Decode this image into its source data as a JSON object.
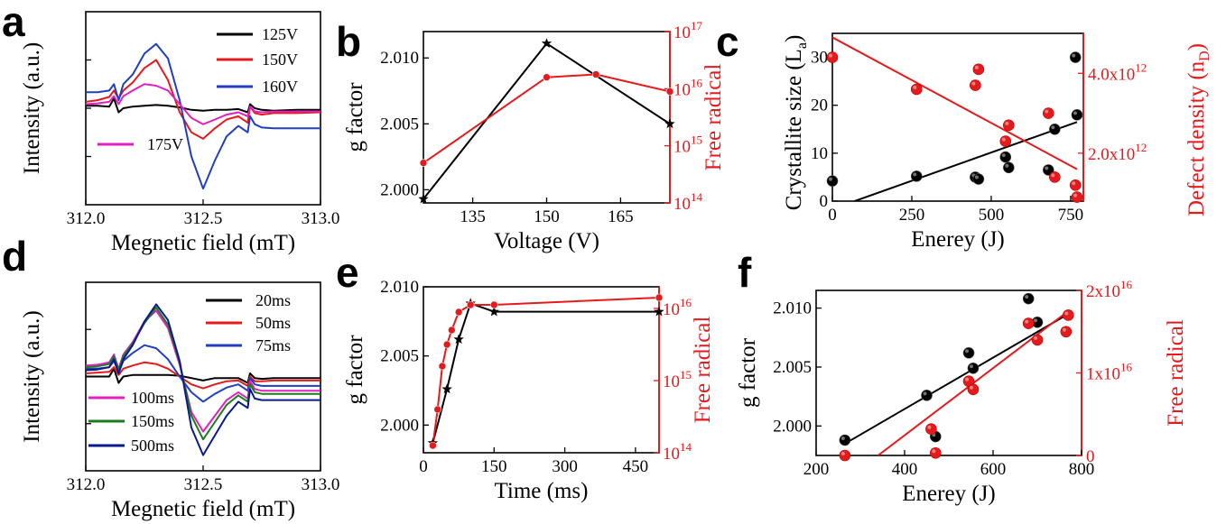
{
  "chart_data": [
    {
      "id": "a",
      "panel_label": "a",
      "type": "line",
      "xlabel": "Megnetic field (mT)",
      "ylabel": "Intensity (a.u.)",
      "xlim": [
        312.0,
        313.0
      ],
      "ylim": [
        -1.2,
        1.2
      ],
      "xticks": [
        312.0,
        312.5,
        313.0
      ],
      "xtick_labels": [
        "312.0",
        "312.5",
        "313.0"
      ],
      "y_tick_labels_shown": false,
      "series": [
        {
          "name": "125V",
          "color": "#000000",
          "x": [
            312.0,
            312.05,
            312.1,
            312.12,
            312.14,
            312.16,
            312.2,
            312.25,
            312.3,
            312.35,
            312.4,
            312.45,
            312.5,
            312.55,
            312.6,
            312.65,
            312.69,
            312.7,
            312.72,
            312.75,
            312.8,
            312.9,
            313.0
          ],
          "y": [
            0.03,
            0.03,
            0.02,
            0.12,
            -0.05,
            0.0,
            0.02,
            0.03,
            0.04,
            0.03,
            0.01,
            -0.02,
            -0.03,
            -0.02,
            -0.02,
            -0.01,
            -0.05,
            0.05,
            0.0,
            -0.02,
            -0.03,
            -0.02,
            -0.02
          ]
        },
        {
          "name": "150V",
          "color": "#e41a1c",
          "x": [
            312.0,
            312.05,
            312.1,
            312.12,
            312.14,
            312.16,
            312.2,
            312.25,
            312.3,
            312.35,
            312.4,
            312.45,
            312.5,
            312.55,
            312.6,
            312.65,
            312.69,
            312.7,
            312.72,
            312.75,
            312.8,
            312.9,
            313.0
          ],
          "y": [
            0.08,
            0.1,
            0.14,
            0.22,
            0.12,
            0.22,
            0.32,
            0.5,
            0.6,
            0.35,
            -0.05,
            -0.3,
            -0.38,
            -0.25,
            -0.14,
            -0.1,
            -0.18,
            0.02,
            -0.06,
            -0.08,
            -0.06,
            -0.06,
            -0.05
          ]
        },
        {
          "name": "160V",
          "color": "#1f3fbf",
          "x": [
            312.0,
            312.05,
            312.1,
            312.12,
            312.14,
            312.16,
            312.2,
            312.25,
            312.3,
            312.35,
            312.4,
            312.45,
            312.5,
            312.55,
            312.6,
            312.65,
            312.69,
            312.7,
            312.72,
            312.75,
            312.8,
            312.9,
            313.0
          ],
          "y": [
            0.2,
            0.2,
            0.22,
            0.3,
            0.1,
            0.3,
            0.42,
            0.68,
            0.8,
            0.62,
            0.1,
            -0.6,
            -1.0,
            -0.65,
            -0.35,
            -0.22,
            -0.3,
            -0.1,
            -0.2,
            -0.24,
            -0.25,
            -0.25,
            -0.25
          ]
        },
        {
          "name": "175V",
          "color": "#e020c0",
          "x": [
            312.0,
            312.05,
            312.1,
            312.12,
            312.14,
            312.16,
            312.2,
            312.25,
            312.3,
            312.35,
            312.4,
            312.45,
            312.5,
            312.55,
            312.6,
            312.65,
            312.69,
            312.7,
            312.72,
            312.75,
            312.8,
            312.9,
            313.0
          ],
          "y": [
            0.05,
            0.06,
            0.08,
            0.15,
            0.05,
            0.15,
            0.22,
            0.3,
            0.28,
            0.22,
            0.05,
            -0.12,
            -0.2,
            -0.14,
            -0.08,
            -0.05,
            -0.1,
            0.02,
            -0.04,
            -0.05,
            -0.04,
            -0.04,
            -0.04
          ]
        }
      ]
    },
    {
      "id": "b",
      "panel_label": "b",
      "type": "line",
      "xlabel": "Voltage (V)",
      "ylabel": "g factor",
      "ylabel_right": "Free radical",
      "xlim": [
        125,
        175
      ],
      "xticks": [
        135,
        150,
        165
      ],
      "ylim": [
        1.999,
        2.012
      ],
      "yticks": [
        2.0,
        2.005,
        2.01
      ],
      "ytick_labels": [
        "2.000",
        "2.005",
        "2.010"
      ],
      "y2_log_range": [
        14,
        17
      ],
      "y2_exponents": [
        "14",
        "15",
        "16",
        "17"
      ],
      "series": [
        {
          "name": "g factor",
          "axis": "left",
          "color": "#000000",
          "marker": "star",
          "x": [
            125,
            150,
            175
          ],
          "y": [
            1.9993,
            2.0111,
            2.005
          ]
        },
        {
          "name": "Free radical",
          "axis": "right",
          "color": "#e41a1c",
          "marker": "circle",
          "x": [
            125,
            150,
            160,
            175
          ],
          "y_log10": [
            14.7,
            16.2,
            16.25,
            15.95
          ]
        }
      ]
    },
    {
      "id": "c",
      "panel_label": "c",
      "type": "scatter",
      "xlabel": "Enerey (J)",
      "ylabel": "Crystallite size (L",
      "ylabel_sub": "a",
      "ylabel_right": "Defect density (n",
      "ylabel_right_sub": "D",
      "xlim": [
        0,
        790
      ],
      "xticks": [
        0,
        250,
        500,
        750
      ],
      "ylim": [
        0,
        35
      ],
      "yticks": [
        0,
        10,
        20,
        30
      ],
      "y2lim": [
        800000000000,
        5000000000000
      ],
      "y2ticks": [
        2000000000000,
        4000000000000
      ],
      "y2tick_mantissa": [
        "2.0x10",
        "4.0x10"
      ],
      "y2tick_exponent": "12",
      "series": [
        {
          "name": "Crystallite size",
          "axis": "left",
          "color": "#000000",
          "x": [
            0,
            265,
            450,
            460,
            545,
            555,
            680,
            700,
            765,
            770
          ],
          "y": [
            4.2,
            5.2,
            5.0,
            4.6,
            9.2,
            7.0,
            6.5,
            15.0,
            30.0,
            18.0
          ],
          "fit": [
            [
              70,
              0
            ],
            [
              770,
              16.5
            ]
          ]
        },
        {
          "name": "Defect density",
          "axis": "right",
          "color": "#e41a1c",
          "x": [
            0,
            265,
            450,
            460,
            545,
            555,
            680,
            700,
            765,
            770
          ],
          "y": [
            4400000000000,
            3600000000000,
            3700000000000,
            4100000000000,
            2300000000000,
            2700000000000,
            3000000000000,
            1400000000000,
            1200000000000,
            900000000000
          ],
          "fit": [
            [
              0,
              4900000000000
            ],
            [
              770,
              1600000000000
            ]
          ]
        }
      ]
    },
    {
      "id": "d",
      "panel_label": "d",
      "type": "line",
      "xlabel": "Megnetic field (mT)",
      "ylabel": "Intensity (a.u.)",
      "xlim": [
        312.0,
        313.0
      ],
      "ylim": [
        -1.2,
        1.2
      ],
      "xticks": [
        312.0,
        312.5,
        313.0
      ],
      "xtick_labels": [
        "312.0",
        "312.5",
        "313.0"
      ],
      "y_tick_labels_shown": false,
      "series": [
        {
          "name": "20ms",
          "color": "#000000",
          "x": [
            312.0,
            312.05,
            312.1,
            312.12,
            312.14,
            312.16,
            312.2,
            312.25,
            312.3,
            312.35,
            312.4,
            312.45,
            312.5,
            312.55,
            312.6,
            312.65,
            312.69,
            312.7,
            312.72,
            312.75,
            312.8,
            312.9,
            313.0
          ],
          "y": [
            0.0,
            0.0,
            0.0,
            0.1,
            -0.08,
            0.0,
            0.02,
            0.02,
            0.02,
            0.02,
            0.01,
            -0.02,
            -0.05,
            -0.02,
            -0.02,
            -0.02,
            -0.08,
            0.04,
            -0.02,
            -0.03,
            -0.02,
            -0.02,
            -0.02
          ]
        },
        {
          "name": "50ms",
          "color": "#e41a1c",
          "x": [
            312.0,
            312.05,
            312.1,
            312.12,
            312.14,
            312.16,
            312.2,
            312.25,
            312.3,
            312.35,
            312.4,
            312.45,
            312.5,
            312.55,
            312.6,
            312.65,
            312.69,
            312.7,
            312.72,
            312.75,
            312.8,
            312.9,
            313.0
          ],
          "y": [
            0.04,
            0.05,
            0.06,
            0.12,
            0.02,
            0.1,
            0.14,
            0.18,
            0.16,
            0.1,
            0.0,
            -0.1,
            -0.15,
            -0.1,
            -0.06,
            -0.05,
            -0.12,
            0.0,
            -0.06,
            -0.06,
            -0.05,
            -0.05,
            -0.05
          ]
        },
        {
          "name": "75ms",
          "color": "#1f3fbf",
          "x": [
            312.0,
            312.05,
            312.1,
            312.12,
            312.14,
            312.16,
            312.2,
            312.25,
            312.3,
            312.35,
            312.4,
            312.45,
            312.5,
            312.55,
            312.6,
            312.65,
            312.69,
            312.7,
            312.72,
            312.75,
            312.8,
            312.9,
            313.0
          ],
          "y": [
            0.1,
            0.1,
            0.12,
            0.2,
            0.05,
            0.2,
            0.3,
            0.4,
            0.36,
            0.22,
            0.0,
            -0.2,
            -0.32,
            -0.22,
            -0.14,
            -0.1,
            -0.18,
            -0.02,
            -0.1,
            -0.12,
            -0.12,
            -0.12,
            -0.12
          ]
        },
        {
          "name": "100ms",
          "color": "#e020c0",
          "x": [
            312.0,
            312.05,
            312.1,
            312.12,
            312.14,
            312.16,
            312.2,
            312.25,
            312.3,
            312.35,
            312.4,
            312.45,
            312.5,
            312.55,
            312.6,
            312.65,
            312.69,
            312.7,
            312.72,
            312.75,
            312.8,
            312.9,
            313.0
          ],
          "y": [
            0.14,
            0.15,
            0.18,
            0.28,
            0.1,
            0.28,
            0.44,
            0.7,
            0.84,
            0.62,
            0.15,
            -0.45,
            -0.7,
            -0.5,
            -0.3,
            -0.2,
            -0.28,
            -0.06,
            -0.16,
            -0.18,
            -0.18,
            -0.18,
            -0.18
          ]
        },
        {
          "name": "150ms",
          "color": "#1e7b1e",
          "x": [
            312.0,
            312.05,
            312.1,
            312.12,
            312.14,
            312.16,
            312.2,
            312.25,
            312.3,
            312.35,
            312.4,
            312.45,
            312.5,
            312.55,
            312.6,
            312.65,
            312.69,
            312.7,
            312.72,
            312.75,
            312.8,
            312.9,
            313.0
          ],
          "y": [
            0.12,
            0.13,
            0.16,
            0.26,
            0.08,
            0.26,
            0.42,
            0.68,
            0.88,
            0.66,
            0.18,
            -0.5,
            -0.8,
            -0.58,
            -0.36,
            -0.24,
            -0.32,
            -0.1,
            -0.2,
            -0.22,
            -0.22,
            -0.22,
            -0.22
          ]
        },
        {
          "name": "500ms",
          "color": "#0a1a8c",
          "x": [
            312.0,
            312.05,
            312.1,
            312.12,
            312.14,
            312.16,
            312.2,
            312.25,
            312.3,
            312.35,
            312.4,
            312.45,
            312.5,
            312.55,
            312.6,
            312.65,
            312.69,
            312.7,
            312.72,
            312.75,
            312.8,
            312.9,
            313.0
          ],
          "y": [
            0.08,
            0.09,
            0.12,
            0.22,
            0.04,
            0.22,
            0.4,
            0.7,
            0.92,
            0.72,
            0.2,
            -0.65,
            -1.0,
            -0.75,
            -0.5,
            -0.32,
            -0.4,
            -0.16,
            -0.28,
            -0.3,
            -0.3,
            -0.3,
            -0.3
          ]
        }
      ]
    },
    {
      "id": "e",
      "panel_label": "e",
      "type": "line",
      "xlabel": "Time (ms)",
      "ylabel": "g factor",
      "ylabel_right": "Free radical",
      "xlim": [
        0,
        500
      ],
      "xticks": [
        0,
        150,
        300,
        450
      ],
      "ylim": [
        1.998,
        2.01
      ],
      "yticks": [
        2.0,
        2.005,
        2.01
      ],
      "ytick_labels": [
        "2.000",
        "2.005",
        "2.010"
      ],
      "y2_log_range": [
        14,
        16.3
      ],
      "y2_exponents": [
        "14",
        "15",
        "16"
      ],
      "series": [
        {
          "name": "g factor",
          "axis": "left",
          "color": "#000000",
          "marker": "star",
          "x": [
            20,
            50,
            75,
            100,
            150,
            500
          ],
          "y": [
            1.9987,
            2.0026,
            2.0062,
            2.0088,
            2.0082,
            2.0082
          ]
        },
        {
          "name": "Free radical",
          "axis": "right",
          "color": "#e41a1c",
          "marker": "circle",
          "x": [
            20,
            30,
            40,
            50,
            60,
            75,
            100,
            150,
            500
          ],
          "y_log10": [
            14.1,
            14.6,
            15.2,
            15.5,
            15.7,
            15.95,
            16.05,
            16.05,
            16.15
          ]
        }
      ]
    },
    {
      "id": "f",
      "panel_label": "f",
      "type": "scatter",
      "xlabel": "Enerey (J)",
      "ylabel": "g factor",
      "ylabel_right": "Free radical",
      "xlim": [
        200,
        800
      ],
      "xticks": [
        200,
        400,
        600,
        800
      ],
      "ylim": [
        1.9975,
        2.0115
      ],
      "yticks": [
        2.0,
        2.005,
        2.01
      ],
      "ytick_labels": [
        "2.000",
        "2.005",
        "2.010"
      ],
      "y2lim": [
        0,
        20000000000000000
      ],
      "y2ticks": [
        0,
        10000000000000000,
        20000000000000000
      ],
      "y2tick_mantissa": [
        "0",
        "1x10",
        "2x10"
      ],
      "y2tick_exponent": "16",
      "series": [
        {
          "name": "g factor",
          "axis": "left",
          "color": "#000000",
          "x": [
            265,
            450,
            470,
            545,
            555,
            680,
            700
          ],
          "y": [
            1.9988,
            2.0026,
            1.9991,
            2.0062,
            2.0049,
            2.0108,
            2.0088
          ],
          "fit": [
            [
              265,
              1.9985
            ],
            [
              770,
              2.0095
            ]
          ]
        },
        {
          "name": "Free radical",
          "axis": "right",
          "color": "#e41a1c",
          "x": [
            265,
            460,
            470,
            545,
            555,
            680,
            700,
            765,
            770
          ],
          "y": [
            0,
            3200000000000000,
            300000000000000,
            9000000000000000,
            8000000000000000,
            16000000000000000,
            14000000000000000,
            15000000000000000,
            17000000000000000
          ],
          "fit": [
            [
              340,
              0
            ],
            [
              770,
              17500000000000000
            ]
          ]
        }
      ]
    }
  ]
}
